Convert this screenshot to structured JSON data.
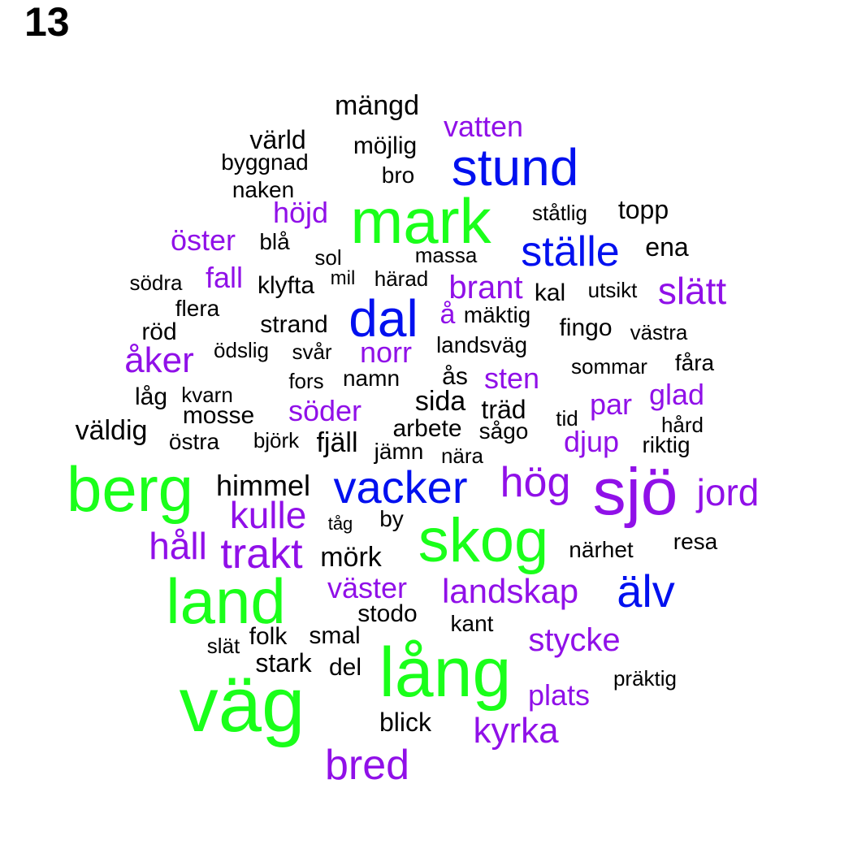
{
  "panel_label": "13",
  "colors": {
    "green": "#1aff1a",
    "blue": "#0010ef",
    "purple": "#9010e8",
    "black": "#000000"
  },
  "words": [
    {
      "text": "väg",
      "color": "green"
    },
    {
      "text": "lång",
      "color": "green"
    },
    {
      "text": "berg",
      "color": "green"
    },
    {
      "text": "land",
      "color": "green"
    },
    {
      "text": "skog",
      "color": "green"
    },
    {
      "text": "sjö",
      "color": "purple"
    },
    {
      "text": "mark",
      "color": "green"
    },
    {
      "text": "stund",
      "color": "blue"
    },
    {
      "text": "ställe",
      "color": "blue"
    },
    {
      "text": "dal",
      "color": "blue"
    },
    {
      "text": "vacker",
      "color": "blue"
    },
    {
      "text": "älv",
      "color": "blue"
    },
    {
      "text": "bred",
      "color": "purple"
    },
    {
      "text": "trakt",
      "color": "purple"
    },
    {
      "text": "hög",
      "color": "purple"
    },
    {
      "text": "kulle",
      "color": "purple"
    },
    {
      "text": "håll",
      "color": "purple"
    },
    {
      "text": "jord",
      "color": "purple"
    },
    {
      "text": "slätt",
      "color": "purple"
    },
    {
      "text": "kyrka",
      "color": "purple"
    },
    {
      "text": "landskap",
      "color": "purple"
    },
    {
      "text": "åker",
      "color": "purple"
    },
    {
      "text": "brant",
      "color": "purple"
    },
    {
      "text": "stycke",
      "color": "purple"
    },
    {
      "text": "väster",
      "color": "purple"
    },
    {
      "text": "söder",
      "color": "purple"
    },
    {
      "text": "plats",
      "color": "purple"
    },
    {
      "text": "öster",
      "color": "purple"
    },
    {
      "text": "sten",
      "color": "purple"
    },
    {
      "text": "norr",
      "color": "purple"
    },
    {
      "text": "vatten",
      "color": "purple"
    },
    {
      "text": "djup",
      "color": "purple"
    },
    {
      "text": "glad",
      "color": "purple"
    },
    {
      "text": "fall",
      "color": "purple"
    },
    {
      "text": "höjd",
      "color": "purple"
    },
    {
      "text": "par",
      "color": "purple"
    },
    {
      "text": "å",
      "color": "purple"
    },
    {
      "text": "mängd",
      "color": "black"
    },
    {
      "text": "värld",
      "color": "black"
    },
    {
      "text": "möjlig",
      "color": "black"
    },
    {
      "text": "byggnad",
      "color": "black"
    },
    {
      "text": "bro",
      "color": "black"
    },
    {
      "text": "naken",
      "color": "black"
    },
    {
      "text": "ståtlig",
      "color": "black"
    },
    {
      "text": "topp",
      "color": "black"
    },
    {
      "text": "blå",
      "color": "black"
    },
    {
      "text": "ena",
      "color": "black"
    },
    {
      "text": "sol",
      "color": "black"
    },
    {
      "text": "massa",
      "color": "black"
    },
    {
      "text": "södra",
      "color": "black"
    },
    {
      "text": "klyfta",
      "color": "black"
    },
    {
      "text": "mil",
      "color": "black"
    },
    {
      "text": "härad",
      "color": "black"
    },
    {
      "text": "kal",
      "color": "black"
    },
    {
      "text": "utsikt",
      "color": "black"
    },
    {
      "text": "flera",
      "color": "black"
    },
    {
      "text": "mäktig",
      "color": "black"
    },
    {
      "text": "röd",
      "color": "black"
    },
    {
      "text": "strand",
      "color": "black"
    },
    {
      "text": "fingo",
      "color": "black"
    },
    {
      "text": "västra",
      "color": "black"
    },
    {
      "text": "ödslig",
      "color": "black"
    },
    {
      "text": "svår",
      "color": "black"
    },
    {
      "text": "landsväg",
      "color": "black"
    },
    {
      "text": "sommar",
      "color": "black"
    },
    {
      "text": "fåra",
      "color": "black"
    },
    {
      "text": "fors",
      "color": "black"
    },
    {
      "text": "namn",
      "color": "black"
    },
    {
      "text": "ås",
      "color": "black"
    },
    {
      "text": "låg",
      "color": "black"
    },
    {
      "text": "kvarn",
      "color": "black"
    },
    {
      "text": "sida",
      "color": "black"
    },
    {
      "text": "mosse",
      "color": "black"
    },
    {
      "text": "träd",
      "color": "black"
    },
    {
      "text": "tid",
      "color": "black"
    },
    {
      "text": "hård",
      "color": "black"
    },
    {
      "text": "väldig",
      "color": "black"
    },
    {
      "text": "arbete",
      "color": "black"
    },
    {
      "text": "sågo",
      "color": "black"
    },
    {
      "text": "östra",
      "color": "black"
    },
    {
      "text": "björk",
      "color": "black"
    },
    {
      "text": "fjäll",
      "color": "black"
    },
    {
      "text": "jämn",
      "color": "black"
    },
    {
      "text": "riktig",
      "color": "black"
    },
    {
      "text": "nära",
      "color": "black"
    },
    {
      "text": "himmel",
      "color": "black"
    },
    {
      "text": "tåg",
      "color": "black"
    },
    {
      "text": "by",
      "color": "black"
    },
    {
      "text": "resa",
      "color": "black"
    },
    {
      "text": "mörk",
      "color": "black"
    },
    {
      "text": "närhet",
      "color": "black"
    },
    {
      "text": "stodo",
      "color": "black"
    },
    {
      "text": "kant",
      "color": "black"
    },
    {
      "text": "slät",
      "color": "black"
    },
    {
      "text": "folk",
      "color": "black"
    },
    {
      "text": "smal",
      "color": "black"
    },
    {
      "text": "stark",
      "color": "black"
    },
    {
      "text": "del",
      "color": "black"
    },
    {
      "text": "präktig",
      "color": "black"
    },
    {
      "text": "blick",
      "color": "black"
    }
  ]
}
